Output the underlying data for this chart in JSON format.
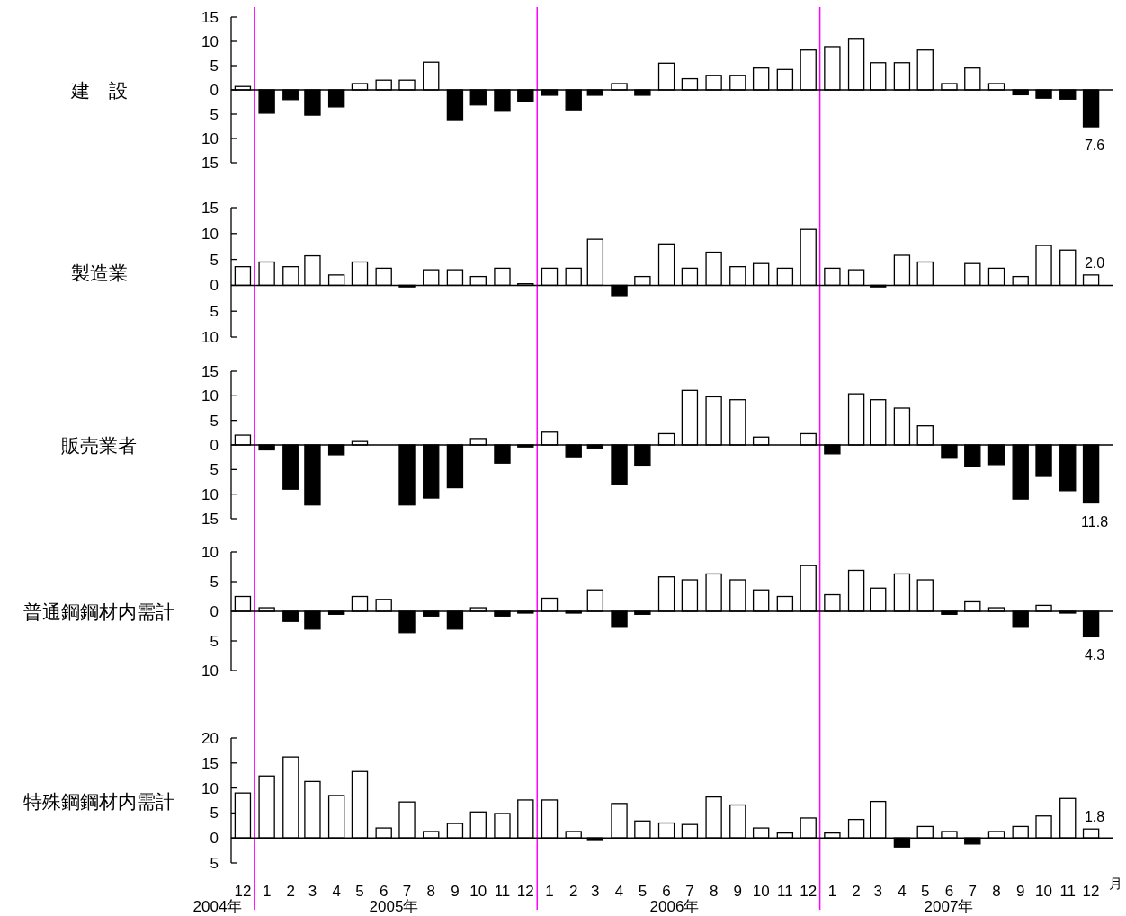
{
  "chart_data": [
    {
      "type": "bar",
      "title": "建　設",
      "x": [
        "2004-12",
        "2005-01",
        "2005-02",
        "2005-03",
        "2005-04",
        "2005-05",
        "2005-06",
        "2005-07",
        "2005-08",
        "2005-09",
        "2005-10",
        "2005-11",
        "2005-12",
        "2006-01",
        "2006-02",
        "2006-03",
        "2006-04",
        "2006-05",
        "2006-06",
        "2006-07",
        "2006-08",
        "2006-09",
        "2006-10",
        "2006-11",
        "2006-12",
        "2007-01",
        "2007-02",
        "2007-03",
        "2007-04",
        "2007-05",
        "2007-06",
        "2007-07",
        "2007-08",
        "2007-09",
        "2007-10",
        "2007-11",
        "2007-12"
      ],
      "values": [
        0.7,
        -4.8,
        -2.0,
        -5.2,
        -3.5,
        1.3,
        2.0,
        2.0,
        5.7,
        -6.3,
        -3.1,
        -4.4,
        -2.4,
        -1.1,
        -4.1,
        -1.1,
        1.3,
        -1.1,
        5.5,
        2.3,
        3.0,
        3.0,
        4.5,
        4.2,
        8.2,
        8.9,
        10.6,
        5.6,
        5.6,
        8.2,
        1.3,
        4.5,
        1.3,
        -1.0,
        -1.7,
        -1.9,
        -7.6
      ],
      "colors": [
        "#ffffff",
        "#000000",
        "#000000",
        "#000000",
        "#000000",
        "#ffffff",
        "#ffffff",
        "#ffffff",
        "#ffffff",
        "#000000",
        "#000000",
        "#000000",
        "#000000",
        "#000000",
        "#000000",
        "#000000",
        "#ffffff",
        "#000000",
        "#ffffff",
        "#ffffff",
        "#ffffff",
        "#ffffff",
        "#ffffff",
        "#ffffff",
        "#ffffff",
        "#ffffff",
        "#ffffff",
        "#ffffff",
        "#ffffff",
        "#ffffff",
        "#ffffff",
        "#ffffff",
        "#ffffff",
        "#000000",
        "#000000",
        "#000000",
        "#000000"
      ],
      "annotations": [
        {
          "text": "7.6",
          "x": "2007-12",
          "y": -7.6
        }
      ],
      "xlim": [
        "2004-11-16",
        "2007-12-16"
      ],
      "ylim": [
        -15,
        15
      ],
      "yticks": [
        {
          "value": -15,
          "label": "15"
        },
        {
          "value": -10,
          "label": "10"
        },
        {
          "value": -5,
          "label": "5"
        },
        0,
        5,
        10,
        15
      ],
      "ref_lines": [
        {
          "axis": "x",
          "value": "2004-12-16",
          "color": "#ff00ff"
        },
        {
          "axis": "x",
          "value": "2005-12-16",
          "color": "#ff00ff"
        },
        {
          "axis": "x",
          "value": "2006-12-16",
          "color": "#ff00ff"
        }
      ],
      "tick_labels": "y"
    },
    {
      "type": "bar",
      "title": "製造業",
      "x": [
        "2004-12",
        "2005-01",
        "2005-02",
        "2005-03",
        "2005-04",
        "2005-05",
        "2005-06",
        "2005-07",
        "2005-08",
        "2005-09",
        "2005-10",
        "2005-11",
        "2005-12",
        "2006-01",
        "2006-02",
        "2006-03",
        "2006-04",
        "2006-05",
        "2006-06",
        "2006-07",
        "2006-08",
        "2006-09",
        "2006-10",
        "2006-11",
        "2006-12",
        "2007-01",
        "2007-02",
        "2007-03",
        "2007-04",
        "2007-05",
        "2007-06",
        "2007-07",
        "2007-08",
        "2007-09",
        "2007-10",
        "2007-11",
        "2007-12"
      ],
      "values": [
        3.6,
        4.5,
        3.6,
        5.7,
        2.0,
        4.5,
        3.3,
        -0.3,
        3.0,
        3.0,
        1.7,
        3.3,
        0.3,
        3.3,
        3.3,
        8.9,
        -2.0,
        1.7,
        8.0,
        3.3,
        6.4,
        3.6,
        4.2,
        3.3,
        10.8,
        3.3,
        3.0,
        -0.3,
        5.8,
        4.5,
        0,
        4.2,
        3.3,
        1.7,
        7.7,
        6.8,
        2.0
      ],
      "colors": [
        "#ffffff",
        "#ffffff",
        "#ffffff",
        "#ffffff",
        "#ffffff",
        "#ffffff",
        "#ffffff",
        "#000000",
        "#ffffff",
        "#ffffff",
        "#ffffff",
        "#ffffff",
        "#ffffff",
        "#ffffff",
        "#ffffff",
        "#ffffff",
        "#000000",
        "#ffffff",
        "#ffffff",
        "#ffffff",
        "#ffffff",
        "#ffffff",
        "#ffffff",
        "#ffffff",
        "#ffffff",
        "#ffffff",
        "#ffffff",
        "#000000",
        "#ffffff",
        "#ffffff",
        "#ffffff",
        "#ffffff",
        "#ffffff",
        "#ffffff",
        "#ffffff",
        "#ffffff",
        "#ffffff"
      ],
      "value_labels": [
        null,
        null,
        null,
        null,
        null,
        null,
        null,
        null,
        null,
        null,
        null,
        null,
        null,
        null,
        null,
        null,
        null,
        null,
        null,
        null,
        null,
        null,
        null,
        null,
        null,
        null,
        null,
        null,
        null,
        null,
        null,
        null,
        null,
        null,
        null,
        null,
        "2.0"
      ],
      "xlim": [
        "2004-11-16",
        "2007-12-16"
      ],
      "ylim": [
        -10,
        15
      ],
      "yticks": [
        {
          "value": -10,
          "label": "10"
        },
        {
          "value": -5,
          "label": "5"
        },
        0,
        5,
        10,
        15
      ],
      "ref_lines": [
        {
          "axis": "x",
          "value": "2004-12-16",
          "color": "#ff00ff"
        },
        {
          "axis": "x",
          "value": "2005-12-16",
          "color": "#ff00ff"
        },
        {
          "axis": "x",
          "value": "2006-12-16",
          "color": "#ff00ff"
        }
      ],
      "tick_labels": "y"
    },
    {
      "type": "bar",
      "title": "販売業者",
      "x": [
        "2004-12",
        "2005-01",
        "2005-02",
        "2005-03",
        "2005-04",
        "2005-05",
        "2005-06",
        "2005-07",
        "2005-08",
        "2005-09",
        "2005-10",
        "2005-11",
        "2005-12",
        "2006-01",
        "2006-02",
        "2006-03",
        "2006-04",
        "2006-05",
        "2006-06",
        "2006-07",
        "2006-08",
        "2006-09",
        "2006-10",
        "2006-11",
        "2006-12",
        "2007-01",
        "2007-02",
        "2007-03",
        "2007-04",
        "2007-05",
        "2007-06",
        "2007-07",
        "2007-08",
        "2007-09",
        "2007-10",
        "2007-11",
        "2007-12"
      ],
      "values": [
        2.0,
        -1.0,
        -9.0,
        -12.2,
        -2.0,
        0.7,
        0,
        -12.2,
        -10.8,
        -8.7,
        1.3,
        -3.7,
        -0.4,
        2.6,
        -2.4,
        -0.7,
        -8.0,
        -4.1,
        2.3,
        11.1,
        9.8,
        9.2,
        1.6,
        0,
        2.3,
        -1.8,
        10.4,
        9.2,
        7.5,
        3.9,
        -2.7,
        -4.4,
        -4.0,
        -11.0,
        -6.4,
        -9.3,
        -11.8
      ],
      "colors": [
        "#ffffff",
        "#000000",
        "#000000",
        "#000000",
        "#000000",
        "#ffffff",
        "#ffffff",
        "#000000",
        "#000000",
        "#000000",
        "#ffffff",
        "#000000",
        "#000000",
        "#ffffff",
        "#000000",
        "#000000",
        "#000000",
        "#000000",
        "#ffffff",
        "#ffffff",
        "#ffffff",
        "#ffffff",
        "#ffffff",
        "#ffffff",
        "#ffffff",
        "#000000",
        "#ffffff",
        "#ffffff",
        "#ffffff",
        "#ffffff",
        "#000000",
        "#000000",
        "#000000",
        "#000000",
        "#000000",
        "#000000",
        "#000000"
      ],
      "annotations": [
        {
          "text": "11.8",
          "x": "2007-12",
          "y": -11.8
        }
      ],
      "xlim": [
        "2004-11-16",
        "2007-12-16"
      ],
      "ylim": [
        -15,
        15
      ],
      "yticks": [
        {
          "value": -15,
          "label": "15"
        },
        {
          "value": -10,
          "label": "10"
        },
        {
          "value": -5,
          "label": "5"
        },
        0,
        5,
        10,
        15
      ],
      "ref_lines": [
        {
          "axis": "x",
          "value": "2004-12-16",
          "color": "#ff00ff"
        },
        {
          "axis": "x",
          "value": "2005-12-16",
          "color": "#ff00ff"
        },
        {
          "axis": "x",
          "value": "2006-12-16",
          "color": "#ff00ff"
        }
      ],
      "tick_labels": "y"
    },
    {
      "type": "bar",
      "title": "普通鋼鋼材内需計",
      "x": [
        "2004-12",
        "2005-01",
        "2005-02",
        "2005-03",
        "2005-04",
        "2005-05",
        "2005-06",
        "2005-07",
        "2005-08",
        "2005-09",
        "2005-10",
        "2005-11",
        "2005-12",
        "2006-01",
        "2006-02",
        "2006-03",
        "2006-04",
        "2006-05",
        "2006-06",
        "2006-07",
        "2006-08",
        "2006-09",
        "2006-10",
        "2006-11",
        "2006-12",
        "2007-01",
        "2007-02",
        "2007-03",
        "2007-04",
        "2007-05",
        "2007-06",
        "2007-07",
        "2007-08",
        "2007-09",
        "2007-10",
        "2007-11",
        "2007-12"
      ],
      "values": [
        2.5,
        0.6,
        -1.7,
        -3.0,
        -0.5,
        2.5,
        2.0,
        -3.6,
        -0.8,
        -3.0,
        0.6,
        -0.8,
        -0.3,
        2.2,
        -0.3,
        3.6,
        -2.7,
        -0.5,
        5.8,
        5.3,
        6.3,
        5.3,
        3.6,
        2.5,
        7.7,
        2.8,
        6.9,
        3.9,
        6.3,
        5.3,
        -0.5,
        1.6,
        0.6,
        -2.7,
        1.0,
        -0.3,
        -4.3
      ],
      "colors": [
        "#ffffff",
        "#ffffff",
        "#000000",
        "#000000",
        "#000000",
        "#ffffff",
        "#ffffff",
        "#000000",
        "#000000",
        "#000000",
        "#ffffff",
        "#000000",
        "#000000",
        "#ffffff",
        "#000000",
        "#ffffff",
        "#000000",
        "#000000",
        "#ffffff",
        "#ffffff",
        "#ffffff",
        "#ffffff",
        "#ffffff",
        "#ffffff",
        "#ffffff",
        "#ffffff",
        "#ffffff",
        "#ffffff",
        "#ffffff",
        "#ffffff",
        "#000000",
        "#ffffff",
        "#ffffff",
        "#000000",
        "#ffffff",
        "#000000",
        "#000000"
      ],
      "annotations": [
        {
          "text": "4.3",
          "x": "2007-12",
          "y": -4.3
        }
      ],
      "xlim": [
        "2004-11-16",
        "2007-12-16"
      ],
      "ylim": [
        -10,
        10
      ],
      "yticks": [
        {
          "value": -10,
          "label": "10"
        },
        {
          "value": -5,
          "label": "5"
        },
        0,
        5,
        10
      ],
      "ref_lines": [
        {
          "axis": "x",
          "value": "2004-12-16",
          "color": "#ff00ff"
        },
        {
          "axis": "x",
          "value": "2005-12-16",
          "color": "#ff00ff"
        },
        {
          "axis": "x",
          "value": "2006-12-16",
          "color": "#ff00ff"
        }
      ],
      "tick_labels": "y"
    },
    {
      "type": "bar",
      "title": "特殊鋼鋼材内需計",
      "xlabel": "月",
      "x": [
        "2004-12",
        "2005-01",
        "2005-02",
        "2005-03",
        "2005-04",
        "2005-05",
        "2005-06",
        "2005-07",
        "2005-08",
        "2005-09",
        "2005-10",
        "2005-11",
        "2005-12",
        "2006-01",
        "2006-02",
        "2006-03",
        "2006-04",
        "2006-05",
        "2006-06",
        "2006-07",
        "2006-08",
        "2006-09",
        "2006-10",
        "2006-11",
        "2006-12",
        "2007-01",
        "2007-02",
        "2007-03",
        "2007-04",
        "2007-05",
        "2007-06",
        "2007-07",
        "2007-08",
        "2007-09",
        "2007-10",
        "2007-11",
        "2007-12"
      ],
      "values": [
        9.0,
        12.4,
        16.2,
        11.3,
        8.5,
        13.3,
        2.0,
        7.2,
        1.3,
        2.9,
        5.2,
        4.9,
        7.6,
        7.6,
        1.3,
        -0.5,
        6.9,
        3.4,
        3.0,
        2.7,
        8.2,
        6.6,
        2.0,
        1.0,
        4.0,
        1.0,
        3.7,
        7.3,
        -1.8,
        2.3,
        1.3,
        -1.2,
        1.3,
        2.3,
        4.4,
        7.9,
        1.8
      ],
      "colors": [
        "#ffffff",
        "#ffffff",
        "#ffffff",
        "#ffffff",
        "#ffffff",
        "#ffffff",
        "#ffffff",
        "#ffffff",
        "#ffffff",
        "#ffffff",
        "#ffffff",
        "#ffffff",
        "#ffffff",
        "#ffffff",
        "#ffffff",
        "#000000",
        "#ffffff",
        "#ffffff",
        "#ffffff",
        "#ffffff",
        "#ffffff",
        "#ffffff",
        "#ffffff",
        "#ffffff",
        "#ffffff",
        "#ffffff",
        "#ffffff",
        "#ffffff",
        "#000000",
        "#ffffff",
        "#ffffff",
        "#000000",
        "#ffffff",
        "#ffffff",
        "#ffffff",
        "#ffffff",
        "#ffffff"
      ],
      "value_labels": [
        null,
        null,
        null,
        null,
        null,
        null,
        null,
        null,
        null,
        null,
        null,
        null,
        null,
        null,
        null,
        null,
        null,
        null,
        null,
        null,
        null,
        null,
        null,
        null,
        null,
        null,
        null,
        null,
        null,
        null,
        null,
        null,
        null,
        null,
        null,
        null,
        "1.8"
      ],
      "xlim": [
        "2004-11-16",
        "2007-12-16"
      ],
      "ylim": [
        -5,
        20
      ],
      "yticks": [
        {
          "value": -5,
          "label": "5"
        },
        0,
        5,
        10,
        15,
        20
      ],
      "xticks": [
        {
          "value": "2004-12",
          "label": "12"
        },
        {
          "value": "2005-01",
          "label": "1"
        },
        {
          "value": "2005-02",
          "label": "2"
        },
        {
          "value": "2005-03",
          "label": "3"
        },
        {
          "value": "2005-04",
          "label": "4"
        },
        {
          "value": "2005-05",
          "label": "5"
        },
        {
          "value": "2005-06",
          "label": "6"
        },
        {
          "value": "2005-07",
          "label": "7"
        },
        {
          "value": "2005-08",
          "label": "8"
        },
        {
          "value": "2005-09",
          "label": "9"
        },
        {
          "value": "2005-10",
          "label": "10"
        },
        {
          "value": "2005-11",
          "label": "11"
        },
        {
          "value": "2005-12",
          "label": "12"
        },
        {
          "value": "2006-01",
          "label": "1"
        },
        {
          "value": "2006-02",
          "label": "2"
        },
        {
          "value": "2006-03",
          "label": "3"
        },
        {
          "value": "2006-04",
          "label": "4"
        },
        {
          "value": "2006-05",
          "label": "5"
        },
        {
          "value": "2006-06",
          "label": "6"
        },
        {
          "value": "2006-07",
          "label": "7"
        },
        {
          "value": "2006-08",
          "label": "8"
        },
        {
          "value": "2006-09",
          "label": "9"
        },
        {
          "value": "2006-10",
          "label": "10"
        },
        {
          "value": "2006-11",
          "label": "11"
        },
        {
          "value": "2006-12",
          "label": "12"
        },
        {
          "value": "2007-01",
          "label": "1"
        },
        {
          "value": "2007-02",
          "label": "2"
        },
        {
          "value": "2007-03",
          "label": "3"
        },
        {
          "value": "2007-04",
          "label": "4"
        },
        {
          "value": "2007-05",
          "label": "5"
        },
        {
          "value": "2007-06",
          "label": "6"
        },
        {
          "value": "2007-07",
          "label": "7"
        },
        {
          "value": "2007-08",
          "label": "8"
        },
        {
          "value": "2007-09",
          "label": "9"
        },
        {
          "value": "2007-10",
          "label": "10"
        },
        {
          "value": "2007-11",
          "label": "11"
        },
        {
          "value": "2007-12",
          "label": "12"
        }
      ],
      "annotations": [
        "2004年",
        "2005年",
        "2006年",
        "2007年"
      ],
      "ref_lines": [
        {
          "axis": "x",
          "value": "2004-12-16",
          "color": "#ff00ff"
        },
        {
          "axis": "x",
          "value": "2005-12-16",
          "color": "#ff00ff"
        },
        {
          "axis": "x",
          "value": "2006-12-16",
          "color": "#ff00ff"
        }
      ]
    }
  ]
}
